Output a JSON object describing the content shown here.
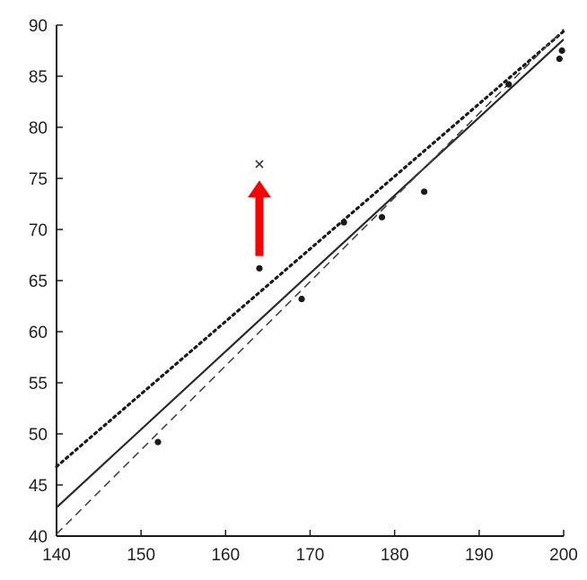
{
  "chart_data": {
    "type": "scatter",
    "title": "",
    "xlabel": "",
    "ylabel": "",
    "xlim": [
      140,
      200
    ],
    "ylim": [
      40,
      90
    ],
    "x_ticks": [
      140,
      150,
      160,
      170,
      180,
      190,
      200
    ],
    "y_ticks": [
      40,
      45,
      50,
      55,
      60,
      65,
      70,
      75,
      80,
      85,
      90
    ],
    "grid": false,
    "legend": "none",
    "points": [
      {
        "x": 152,
        "y": 49.2
      },
      {
        "x": 164,
        "y": 66.2
      },
      {
        "x": 169,
        "y": 63.2
      },
      {
        "x": 174,
        "y": 70.7
      },
      {
        "x": 178.5,
        "y": 71.2
      },
      {
        "x": 183.5,
        "y": 73.7
      },
      {
        "x": 193.5,
        "y": 84.2
      },
      {
        "x": 199.5,
        "y": 86.7
      },
      {
        "x": 199.8,
        "y": 87.5
      }
    ],
    "highlighted_point": {
      "x": 164,
      "y": 76.4,
      "marker": "x"
    },
    "arrow": {
      "from": {
        "x": 164,
        "y": 67.4
      },
      "to": {
        "x": 164,
        "y": 74.8
      },
      "color": "#ff0000"
    },
    "lines": [
      {
        "style": "solid",
        "x": [
          140,
          200
        ],
        "y": [
          42.8,
          88.6
        ]
      },
      {
        "style": "dotted",
        "x": [
          140,
          200
        ],
        "y": [
          46.8,
          89.4
        ]
      },
      {
        "style": "dashed",
        "x": [
          140,
          200
        ],
        "y": [
          40.2,
          89.6
        ]
      }
    ]
  }
}
